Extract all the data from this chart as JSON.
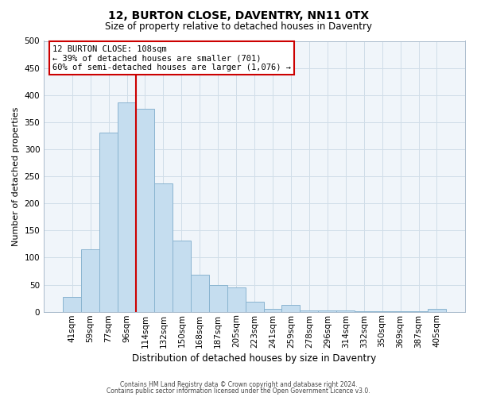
{
  "title": "12, BURTON CLOSE, DAVENTRY, NN11 0TX",
  "subtitle": "Size of property relative to detached houses in Daventry",
  "xlabel": "Distribution of detached houses by size in Daventry",
  "ylabel": "Number of detached properties",
  "bar_labels": [
    "41sqm",
    "59sqm",
    "77sqm",
    "96sqm",
    "114sqm",
    "132sqm",
    "150sqm",
    "168sqm",
    "187sqm",
    "205sqm",
    "223sqm",
    "241sqm",
    "259sqm",
    "278sqm",
    "296sqm",
    "314sqm",
    "332sqm",
    "350sqm",
    "369sqm",
    "387sqm",
    "405sqm"
  ],
  "bar_values": [
    28,
    116,
    330,
    387,
    375,
    237,
    132,
    68,
    50,
    45,
    18,
    5,
    13,
    3,
    3,
    2,
    1,
    1,
    1,
    1,
    5
  ],
  "bar_color": "#c5ddef",
  "bar_edge_color": "#8ab4d0",
  "vline_x_index": 4,
  "vline_color": "#cc0000",
  "ylim": [
    0,
    500
  ],
  "yticks": [
    0,
    50,
    100,
    150,
    200,
    250,
    300,
    350,
    400,
    450,
    500
  ],
  "annotation_title": "12 BURTON CLOSE: 108sqm",
  "annotation_line1": "← 39% of detached houses are smaller (701)",
  "annotation_line2": "60% of semi-detached houses are larger (1,076) →",
  "annotation_box_color": "#ffffff",
  "annotation_box_edge": "#cc0000",
  "grid_color": "#d0dde8",
  "footer1": "Contains HM Land Registry data © Crown copyright and database right 2024.",
  "footer2": "Contains public sector information licensed under the Open Government Licence v3.0.",
  "fig_width": 6.0,
  "fig_height": 5.0,
  "title_fontsize": 10,
  "subtitle_fontsize": 8.5,
  "ylabel_fontsize": 8,
  "xlabel_fontsize": 8.5,
  "tick_fontsize": 7.5,
  "footer_fontsize": 5.5
}
